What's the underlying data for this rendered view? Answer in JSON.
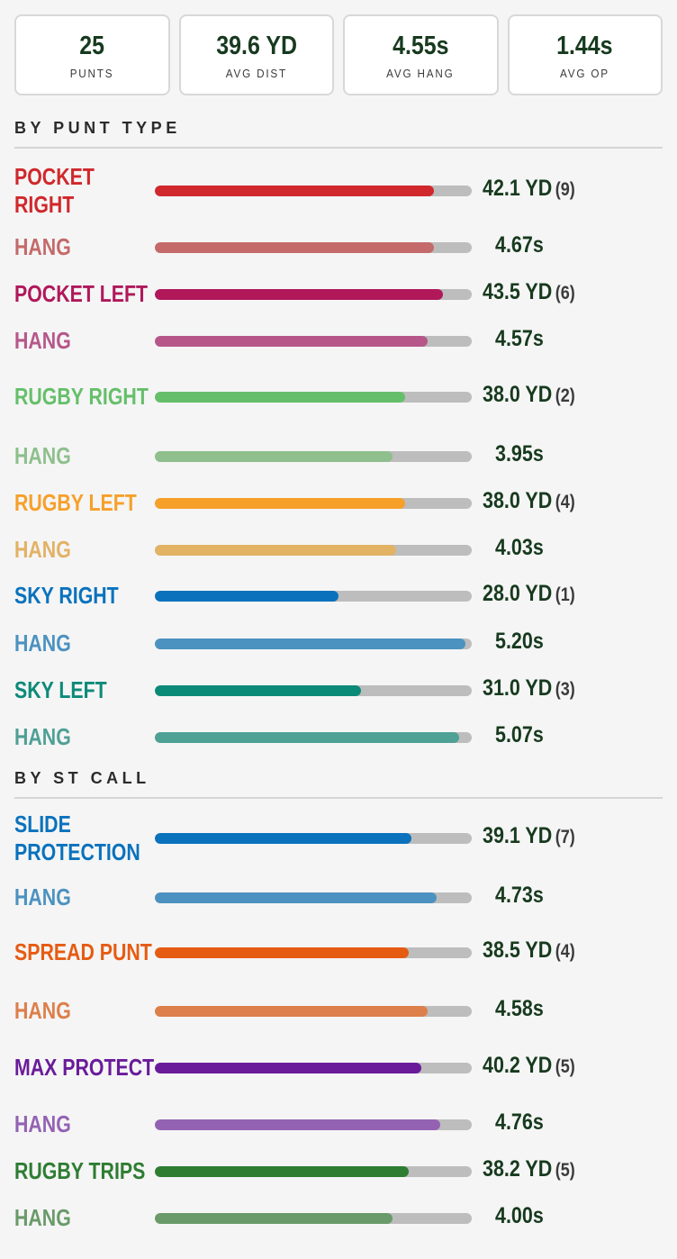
{
  "summary": [
    {
      "value": "25",
      "label": "PUNTS"
    },
    {
      "value": "39.6 YD",
      "label": "AVG DIST"
    },
    {
      "value": "4.55s",
      "label": "AVG HANG"
    },
    {
      "value": "1.44s",
      "label": "AVG OP"
    }
  ],
  "sections": {
    "punt_type": {
      "title": "BY PUNT TYPE",
      "rows": [
        {
          "label": "POCKET RIGHT",
          "fill": 0.88,
          "value": "42.1 YD",
          "count": "(9)",
          "color": "#d0282c",
          "kind": "distance"
        },
        {
          "label": "HANG",
          "fill": 0.88,
          "value": "4.67s",
          "count": "",
          "color": "#c46a6a",
          "kind": "hang"
        },
        {
          "label": "POCKET LEFT",
          "fill": 0.91,
          "value": "43.5 YD",
          "count": "(6)",
          "color": "#b0185a",
          "kind": "distance"
        },
        {
          "label": "HANG",
          "fill": 0.86,
          "value": "4.57s",
          "count": "",
          "color": "#b6578a",
          "kind": "hang"
        },
        {
          "label": "RUGBY RIGHT",
          "fill": 0.79,
          "value": "38.0 YD",
          "count": "(2)",
          "color": "#65bf6a",
          "kind": "distance"
        },
        {
          "label": "HANG",
          "fill": 0.75,
          "value": "3.95s",
          "count": "",
          "color": "#8ebf8c",
          "kind": "hang"
        },
        {
          "label": "RUGBY LEFT",
          "fill": 0.79,
          "value": "38.0 YD",
          "count": "(4)",
          "color": "#f6a02a",
          "kind": "distance"
        },
        {
          "label": "HANG",
          "fill": 0.76,
          "value": "4.03s",
          "count": "",
          "color": "#e2b265",
          "kind": "hang"
        },
        {
          "label": "SKY RIGHT",
          "fill": 0.58,
          "value": "28.0 YD",
          "count": "(1)",
          "color": "#0a72bd",
          "kind": "distance"
        },
        {
          "label": "HANG",
          "fill": 0.98,
          "value": "5.20s",
          "count": "",
          "color": "#4c92c0",
          "kind": "hang"
        },
        {
          "label": "SKY LEFT",
          "fill": 0.65,
          "value": "31.0 YD",
          "count": "(3)",
          "color": "#0c8a78",
          "kind": "distance"
        },
        {
          "label": "HANG",
          "fill": 0.96,
          "value": "5.07s",
          "count": "",
          "color": "#4fa095",
          "kind": "hang"
        }
      ]
    },
    "st_call": {
      "title": "BY ST CALL",
      "rows": [
        {
          "label": "SLIDE PROTECTION",
          "fill": 0.81,
          "value": "39.1 YD",
          "count": "(7)",
          "color": "#0a72bd",
          "kind": "distance"
        },
        {
          "label": "HANG",
          "fill": 0.89,
          "value": "4.73s",
          "count": "",
          "color": "#4c92c0",
          "kind": "hang"
        },
        {
          "label": "SPREAD PUNT",
          "fill": 0.8,
          "value": "38.5 YD",
          "count": "(4)",
          "color": "#e65b12",
          "kind": "distance"
        },
        {
          "label": "HANG",
          "fill": 0.86,
          "value": "4.58s",
          "count": "",
          "color": "#dd7f4a",
          "kind": "hang"
        },
        {
          "label": "MAX PROTECT",
          "fill": 0.84,
          "value": "40.2 YD",
          "count": "(5)",
          "color": "#6a1b9a",
          "kind": "distance"
        },
        {
          "label": "HANG",
          "fill": 0.9,
          "value": "4.76s",
          "count": "",
          "color": "#9462b3",
          "kind": "hang"
        },
        {
          "label": "RUGBY TRIPS",
          "fill": 0.8,
          "value": "38.2 YD",
          "count": "(5)",
          "color": "#2e7d32",
          "kind": "distance"
        },
        {
          "label": "HANG",
          "fill": 0.75,
          "value": "4.00s",
          "count": "",
          "color": "#6a9a6a",
          "kind": "hang"
        }
      ]
    }
  }
}
